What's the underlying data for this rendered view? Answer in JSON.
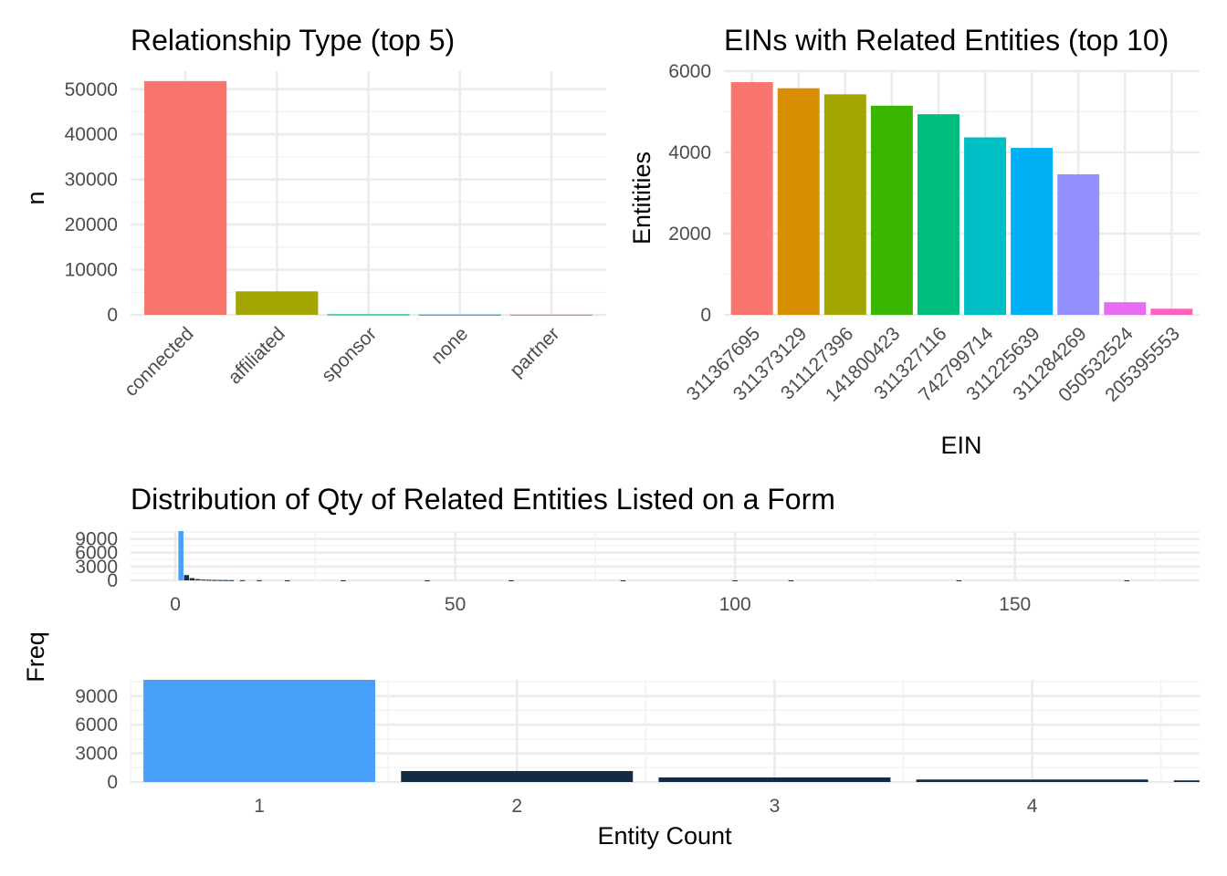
{
  "colors": {
    "background": "#ffffff",
    "grid_major": "#ebebeb",
    "grid_minor": "#f2f2f2",
    "tick_text": "#4d4d4d",
    "title_text": "#000000",
    "hist_highlight": "#48a0f8",
    "hist_other": "#132b43"
  },
  "chart_data": [
    {
      "type": "bar",
      "title": "Relationship Type (top 5)",
      "xlabel": "",
      "ylabel": "n",
      "categories": [
        "connected",
        "affiliated",
        "sponsor",
        "none",
        "partner"
      ],
      "values": [
        51800,
        5200,
        120,
        60,
        40
      ],
      "colors": [
        "#F8766D",
        "#A3A500",
        "#00BF7D",
        "#00B0F6",
        "#E76BF3"
      ],
      "ylim": [
        0,
        54000
      ],
      "yticks": [
        0,
        10000,
        20000,
        30000,
        40000,
        50000
      ],
      "ytick_labels": [
        "0",
        "10000",
        "20000",
        "30000",
        "40000",
        "50000"
      ],
      "grid": true,
      "legend": "none"
    },
    {
      "type": "bar",
      "title": "EINs with Related Entities (top 10)",
      "xlabel": "EIN",
      "ylabel": "Entitities",
      "categories": [
        "311367695",
        "311373129",
        "311127396",
        "141800423",
        "311327116",
        "742799714",
        "311225639",
        "311284269",
        "050532524",
        "205395553"
      ],
      "values": [
        5730,
        5580,
        5430,
        5150,
        4940,
        4370,
        4110,
        3460,
        310,
        150
      ],
      "colors": [
        "#F8766D",
        "#D89000",
        "#A3A500",
        "#39B600",
        "#00BF7D",
        "#00BFC4",
        "#00B0F6",
        "#9590FF",
        "#E76BF3",
        "#FF62BC"
      ],
      "ylim": [
        0,
        6000
      ],
      "yticks": [
        0,
        2000,
        4000,
        6000
      ],
      "ytick_labels": [
        "0",
        "2000",
        "4000",
        "6000"
      ],
      "grid": true,
      "legend": "none"
    },
    {
      "type": "bar",
      "title": "Distribution of Qty of Related Entities Listed on a Form",
      "xlabel": "",
      "ylabel": "Freq",
      "x": [
        1,
        2,
        3,
        4,
        5,
        6,
        7,
        8,
        9,
        10,
        12,
        15,
        20,
        30,
        45,
        60,
        80,
        100,
        110,
        140,
        170
      ],
      "values": [
        10700,
        1150,
        480,
        260,
        170,
        120,
        90,
        70,
        55,
        45,
        35,
        25,
        15,
        10,
        6,
        5,
        4,
        6,
        4,
        3,
        2
      ],
      "xlim": [
        -8,
        183
      ],
      "xticks": [
        0,
        50,
        100,
        150
      ],
      "xtick_labels": [
        "0",
        "50",
        "100",
        "150"
      ],
      "ylim": [
        0,
        10700
      ],
      "yticks": [
        0,
        3000,
        6000,
        9000
      ],
      "ytick_labels": [
        "0",
        "3000",
        "6000",
        "9000"
      ],
      "grid": true,
      "legend": "none"
    },
    {
      "type": "bar",
      "title": "",
      "xlabel": "Entity Count",
      "ylabel": "",
      "x": [
        1,
        2,
        3,
        4,
        5
      ],
      "values": [
        10700,
        1150,
        480,
        260,
        170
      ],
      "xlim": [
        0.5,
        4.65
      ],
      "xticks": [
        1,
        2,
        3,
        4
      ],
      "xtick_labels": [
        "1",
        "2",
        "3",
        "4"
      ],
      "ylim": [
        0,
        10700
      ],
      "yticks": [
        0,
        3000,
        6000,
        9000
      ],
      "ytick_labels": [
        "0",
        "3000",
        "6000",
        "9000"
      ],
      "grid": true,
      "legend": "none"
    }
  ]
}
